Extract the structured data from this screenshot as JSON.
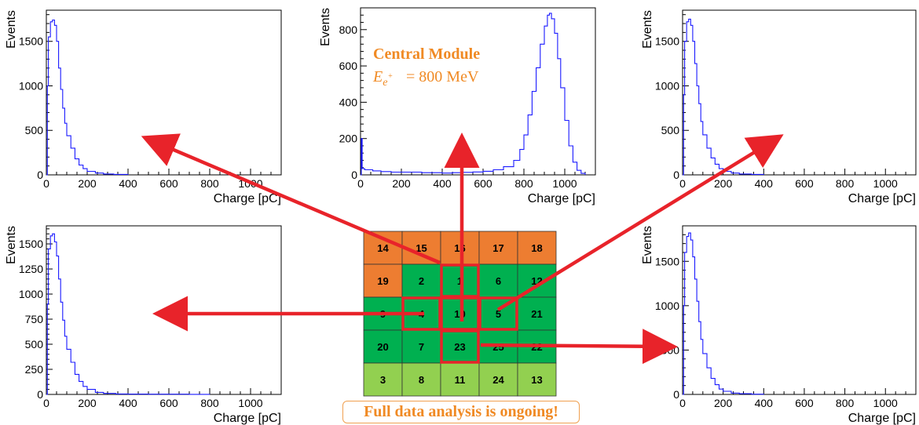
{
  "chart_data": [
    {
      "type": "histogram",
      "position": "top-left",
      "xlabel": "Charge [pC]",
      "ylabel": "Events",
      "xlim": [
        0,
        1150
      ],
      "ylim": [
        0,
        1850
      ],
      "xticks": [
        0,
        200,
        400,
        600,
        800,
        1000
      ],
      "yticks": [
        0,
        500,
        1000,
        1500
      ],
      "points": [
        [
          0,
          0
        ],
        [
          5,
          1000
        ],
        [
          10,
          1550
        ],
        [
          20,
          1720
        ],
        [
          30,
          1740
        ],
        [
          40,
          1680
        ],
        [
          50,
          1500
        ],
        [
          60,
          1200
        ],
        [
          70,
          960
        ],
        [
          80,
          750
        ],
        [
          90,
          580
        ],
        [
          100,
          440
        ],
        [
          120,
          300
        ],
        [
          140,
          180
        ],
        [
          160,
          110
        ],
        [
          180,
          70
        ],
        [
          200,
          40
        ],
        [
          240,
          20
        ],
        [
          280,
          10
        ],
        [
          330,
          5
        ],
        [
          400,
          0
        ]
      ]
    },
    {
      "type": "histogram",
      "position": "top-center",
      "xlabel": "Charge [pC]",
      "ylabel": "Events",
      "xlim": [
        0,
        1150
      ],
      "ylim": [
        0,
        920
      ],
      "xticks": [
        0,
        200,
        400,
        600,
        800,
        1000
      ],
      "yticks": [
        0,
        200,
        400,
        600,
        800
      ],
      "annotation_title": "Central Module",
      "annotation_energy": "= 800 MeV",
      "points": [
        [
          0,
          0
        ],
        [
          4,
          200
        ],
        [
          8,
          35
        ],
        [
          20,
          28
        ],
        [
          60,
          22
        ],
        [
          100,
          18
        ],
        [
          150,
          15
        ],
        [
          200,
          15
        ],
        [
          250,
          15
        ],
        [
          300,
          12
        ],
        [
          350,
          12
        ],
        [
          400,
          10
        ],
        [
          450,
          12
        ],
        [
          500,
          14
        ],
        [
          550,
          16
        ],
        [
          600,
          20
        ],
        [
          650,
          28
        ],
        [
          700,
          45
        ],
        [
          750,
          80
        ],
        [
          780,
          140
        ],
        [
          800,
          220
        ],
        [
          820,
          330
        ],
        [
          840,
          460
        ],
        [
          860,
          590
        ],
        [
          880,
          720
        ],
        [
          900,
          820
        ],
        [
          915,
          880
        ],
        [
          925,
          890
        ],
        [
          935,
          860
        ],
        [
          950,
          780
        ],
        [
          965,
          640
        ],
        [
          980,
          480
        ],
        [
          1000,
          300
        ],
        [
          1020,
          160
        ],
        [
          1040,
          70
        ],
        [
          1060,
          25
        ],
        [
          1080,
          8
        ],
        [
          1100,
          0
        ]
      ]
    },
    {
      "type": "histogram",
      "position": "top-right",
      "xlabel": "Charge [pC]",
      "ylabel": "Events",
      "xlim": [
        0,
        1150
      ],
      "ylim": [
        0,
        1850
      ],
      "xticks": [
        0,
        200,
        400,
        600,
        800,
        1000
      ],
      "yticks": [
        0,
        500,
        1000,
        1500
      ],
      "points": [
        [
          0,
          0
        ],
        [
          5,
          900
        ],
        [
          10,
          1500
        ],
        [
          20,
          1720
        ],
        [
          30,
          1750
        ],
        [
          40,
          1680
        ],
        [
          50,
          1500
        ],
        [
          60,
          1250
        ],
        [
          70,
          1000
        ],
        [
          80,
          800
        ],
        [
          90,
          600
        ],
        [
          100,
          450
        ],
        [
          120,
          300
        ],
        [
          140,
          190
        ],
        [
          160,
          120
        ],
        [
          180,
          70
        ],
        [
          200,
          40
        ],
        [
          240,
          20
        ],
        [
          280,
          10
        ],
        [
          340,
          5
        ],
        [
          400,
          0
        ]
      ]
    },
    {
      "type": "histogram",
      "position": "bottom-left",
      "xlabel": "Charge [pC]",
      "ylabel": "Events",
      "xlim": [
        0,
        1150
      ],
      "ylim": [
        0,
        1680
      ],
      "xticks": [
        0,
        200,
        400,
        600,
        800,
        1000
      ],
      "yticks": [
        0,
        250,
        500,
        750,
        1000,
        1250,
        1500
      ],
      "points": [
        [
          0,
          0
        ],
        [
          5,
          900
        ],
        [
          10,
          1450
        ],
        [
          20,
          1580
        ],
        [
          30,
          1600
        ],
        [
          40,
          1520
        ],
        [
          50,
          1380
        ],
        [
          60,
          1150
        ],
        [
          70,
          920
        ],
        [
          80,
          740
        ],
        [
          90,
          580
        ],
        [
          100,
          450
        ],
        [
          120,
          320
        ],
        [
          140,
          200
        ],
        [
          160,
          130
        ],
        [
          180,
          80
        ],
        [
          200,
          50
        ],
        [
          240,
          20
        ],
        [
          280,
          10
        ],
        [
          340,
          5
        ],
        [
          400,
          3
        ],
        [
          500,
          2
        ],
        [
          600,
          2
        ],
        [
          700,
          1
        ],
        [
          800,
          0
        ]
      ]
    },
    {
      "type": "histogram",
      "position": "bottom-right",
      "xlabel": "Charge [pC]",
      "ylabel": "Events",
      "xlim": [
        0,
        1150
      ],
      "ylim": [
        0,
        1900
      ],
      "xticks": [
        0,
        200,
        400,
        600,
        800,
        1000
      ],
      "yticks": [
        0,
        500,
        1000,
        1500
      ],
      "points": [
        [
          0,
          0
        ],
        [
          5,
          1000
        ],
        [
          10,
          1600
        ],
        [
          20,
          1780
        ],
        [
          30,
          1820
        ],
        [
          40,
          1740
        ],
        [
          50,
          1550
        ],
        [
          60,
          1300
        ],
        [
          70,
          1050
        ],
        [
          80,
          820
        ],
        [
          90,
          620
        ],
        [
          100,
          460
        ],
        [
          120,
          300
        ],
        [
          140,
          180
        ],
        [
          160,
          110
        ],
        [
          180,
          60
        ],
        [
          200,
          35
        ],
        [
          240,
          15
        ],
        [
          280,
          8
        ],
        [
          340,
          3
        ],
        [
          400,
          0
        ]
      ]
    }
  ],
  "module_grid": {
    "rows": [
      [
        {
          "id": "14",
          "color": "#ed7d31"
        },
        {
          "id": "15",
          "color": "#ed7d31"
        },
        {
          "id": "16",
          "color": "#ed7d31"
        },
        {
          "id": "17",
          "color": "#ed7d31"
        },
        {
          "id": "18",
          "color": "#ed7d31"
        }
      ],
      [
        {
          "id": "19",
          "color": "#ed7d31"
        },
        {
          "id": "2",
          "color": "#00b050"
        },
        {
          "id": "1",
          "color": "#00b050"
        },
        {
          "id": "6",
          "color": "#00b050"
        },
        {
          "id": "12",
          "color": "#00b050"
        }
      ],
      [
        {
          "id": "9",
          "color": "#00b050"
        },
        {
          "id": "4",
          "color": "#00b050"
        },
        {
          "id": "10",
          "color": "#00b050"
        },
        {
          "id": "5",
          "color": "#00b050"
        },
        {
          "id": "21",
          "color": "#00b050"
        }
      ],
      [
        {
          "id": "20",
          "color": "#00b050"
        },
        {
          "id": "7",
          "color": "#00b050"
        },
        {
          "id": "23",
          "color": "#00b050"
        },
        {
          "id": "25",
          "color": "#00b050"
        },
        {
          "id": "22",
          "color": "#00b050"
        }
      ],
      [
        {
          "id": "3",
          "color": "#92d050"
        },
        {
          "id": "8",
          "color": "#92d050"
        },
        {
          "id": "11",
          "color": "#92d050"
        },
        {
          "id": "24",
          "color": "#92d050"
        },
        {
          "id": "13",
          "color": "#92d050"
        }
      ]
    ],
    "highlight_color": "#e8232a"
  },
  "colors": {
    "histogram_line": "#1a1aff",
    "arrow": "#e8232a",
    "annotation": "#f08a24"
  },
  "notice": "Full data analysis is ongoing!"
}
